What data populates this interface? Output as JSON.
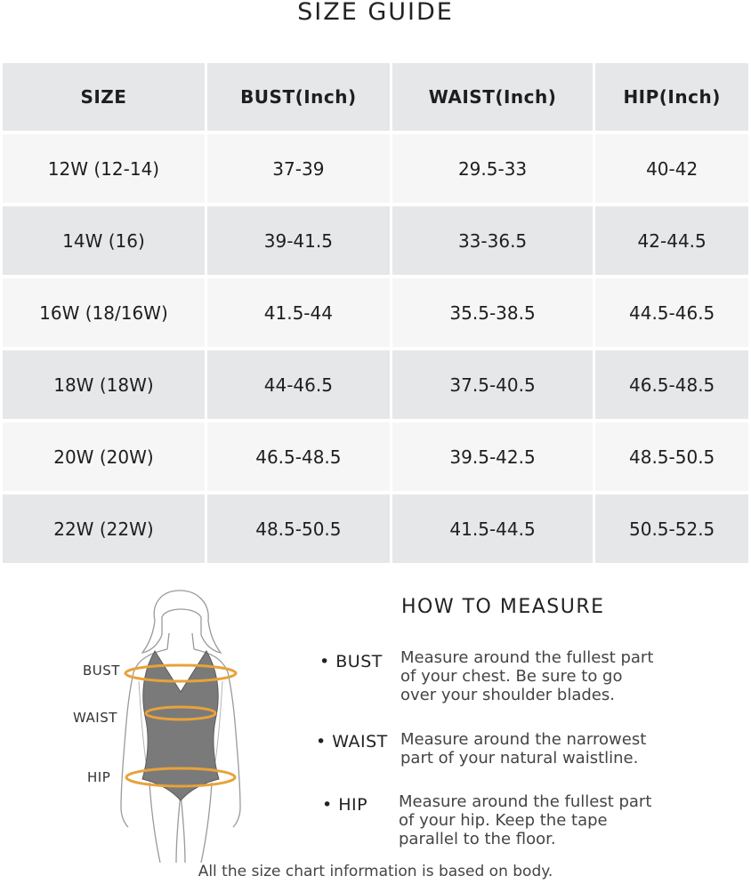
{
  "title": "SIZE GUIDE",
  "table": {
    "headers": [
      "SIZE",
      "BUST(Inch)",
      "WAIST(Inch)",
      "HIP(Inch)"
    ],
    "rows": [
      [
        "12W (12-14)",
        "37-39",
        "29.5-33",
        "40-42"
      ],
      [
        "14W (16)",
        "39-41.5",
        "33-36.5",
        "42-44.5"
      ],
      [
        "16W (18/16W)",
        "41.5-44",
        "35.5-38.5",
        "44.5-46.5"
      ],
      [
        "18W (18W)",
        "44-46.5",
        "37.5-40.5",
        "46.5-48.5"
      ],
      [
        "20W (20W)",
        "46.5-48.5",
        "39.5-42.5",
        "48.5-50.5"
      ],
      [
        "22W (22W)",
        "48.5-50.5",
        "41.5-44.5",
        "50.5-52.5"
      ]
    ]
  },
  "figure": {
    "labels": {
      "bust": "BUST",
      "waist": "WAIST",
      "hip": "HIP"
    },
    "tape_color": "#e8a23a",
    "garment_color": "#7a7a7a"
  },
  "how_to": {
    "title": "HOW TO MEASURE",
    "items": [
      {
        "label": "• BUST",
        "text": [
          "Measure around the fullest part",
          "of your chest. Be sure to go",
          "over your shoulder blades."
        ]
      },
      {
        "label": "• WAIST",
        "text": [
          "Measure around the narrowest",
          "part of your natural waistline."
        ]
      },
      {
        "label": "• HIP",
        "text": [
          "Measure around the fullest part",
          "of your hip. Keep the tape",
          "parallel to the floor."
        ]
      }
    ]
  },
  "footer": "All the size chart information is based on body."
}
